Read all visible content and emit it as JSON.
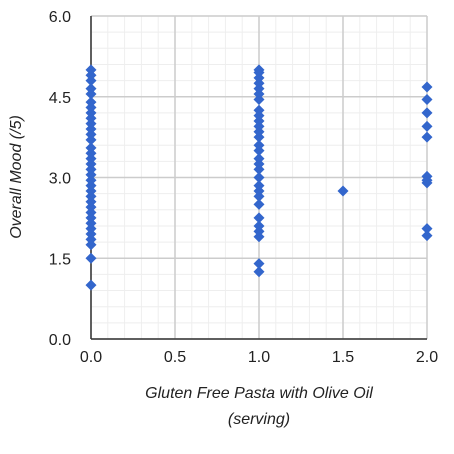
{
  "chart_data": {
    "type": "scatter",
    "title": "",
    "xlabel_lines": [
      "Gluten Free Pasta with Olive Oil",
      "(serving)"
    ],
    "ylabel": "Overall Mood (/5)",
    "xlim": [
      0,
      2
    ],
    "ylim": [
      0,
      6
    ],
    "x_ticks": [
      "0.0",
      "0.5",
      "1.0",
      "1.5",
      "2.0"
    ],
    "y_ticks": [
      "0.0",
      "1.5",
      "3.0",
      "4.5",
      "6.0"
    ],
    "grid": true,
    "legend": "none",
    "series": [
      {
        "color": "#3366cc",
        "points": [
          [
            0,
            1.0
          ],
          [
            0,
            1.5
          ],
          [
            0,
            1.75
          ],
          [
            0,
            1.85
          ],
          [
            0,
            1.95
          ],
          [
            0,
            2.05
          ],
          [
            0,
            2.15
          ],
          [
            0,
            2.25
          ],
          [
            0,
            2.35
          ],
          [
            0,
            2.45
          ],
          [
            0,
            2.55
          ],
          [
            0,
            2.65
          ],
          [
            0,
            2.75
          ],
          [
            0,
            2.85
          ],
          [
            0,
            2.95
          ],
          [
            0,
            3.05
          ],
          [
            0,
            3.15
          ],
          [
            0,
            3.25
          ],
          [
            0,
            3.35
          ],
          [
            0,
            3.45
          ],
          [
            0,
            3.55
          ],
          [
            0,
            3.7
          ],
          [
            0,
            3.8
          ],
          [
            0,
            3.9
          ],
          [
            0,
            4.0
          ],
          [
            0,
            4.1
          ],
          [
            0,
            4.2
          ],
          [
            0,
            4.3
          ],
          [
            0,
            4.4
          ],
          [
            0,
            4.55
          ],
          [
            0,
            4.65
          ],
          [
            0,
            4.8
          ],
          [
            0,
            4.9
          ],
          [
            0,
            5.0
          ],
          [
            1,
            1.25
          ],
          [
            1,
            1.4
          ],
          [
            1,
            1.9
          ],
          [
            1,
            2.0
          ],
          [
            1,
            2.1
          ],
          [
            1,
            2.25
          ],
          [
            1,
            2.5
          ],
          [
            1,
            2.65
          ],
          [
            1,
            2.75
          ],
          [
            1,
            2.85
          ],
          [
            1,
            3.0
          ],
          [
            1,
            3.15
          ],
          [
            1,
            3.25
          ],
          [
            1,
            3.35
          ],
          [
            1,
            3.5
          ],
          [
            1,
            3.6
          ],
          [
            1,
            3.75
          ],
          [
            1,
            3.85
          ],
          [
            1,
            3.95
          ],
          [
            1,
            4.05
          ],
          [
            1,
            4.15
          ],
          [
            1,
            4.25
          ],
          [
            1,
            4.45
          ],
          [
            1,
            4.55
          ],
          [
            1,
            4.65
          ],
          [
            1,
            4.75
          ],
          [
            1,
            4.85
          ],
          [
            1,
            4.95
          ],
          [
            1,
            5.0
          ],
          [
            1.5,
            2.75
          ],
          [
            2,
            1.92
          ],
          [
            2,
            2.05
          ],
          [
            2,
            2.9
          ],
          [
            2,
            2.95
          ],
          [
            2,
            3.02
          ],
          [
            2,
            3.75
          ],
          [
            2,
            3.95
          ],
          [
            2,
            4.2
          ],
          [
            2,
            4.45
          ],
          [
            2,
            4.68
          ]
        ]
      }
    ]
  }
}
